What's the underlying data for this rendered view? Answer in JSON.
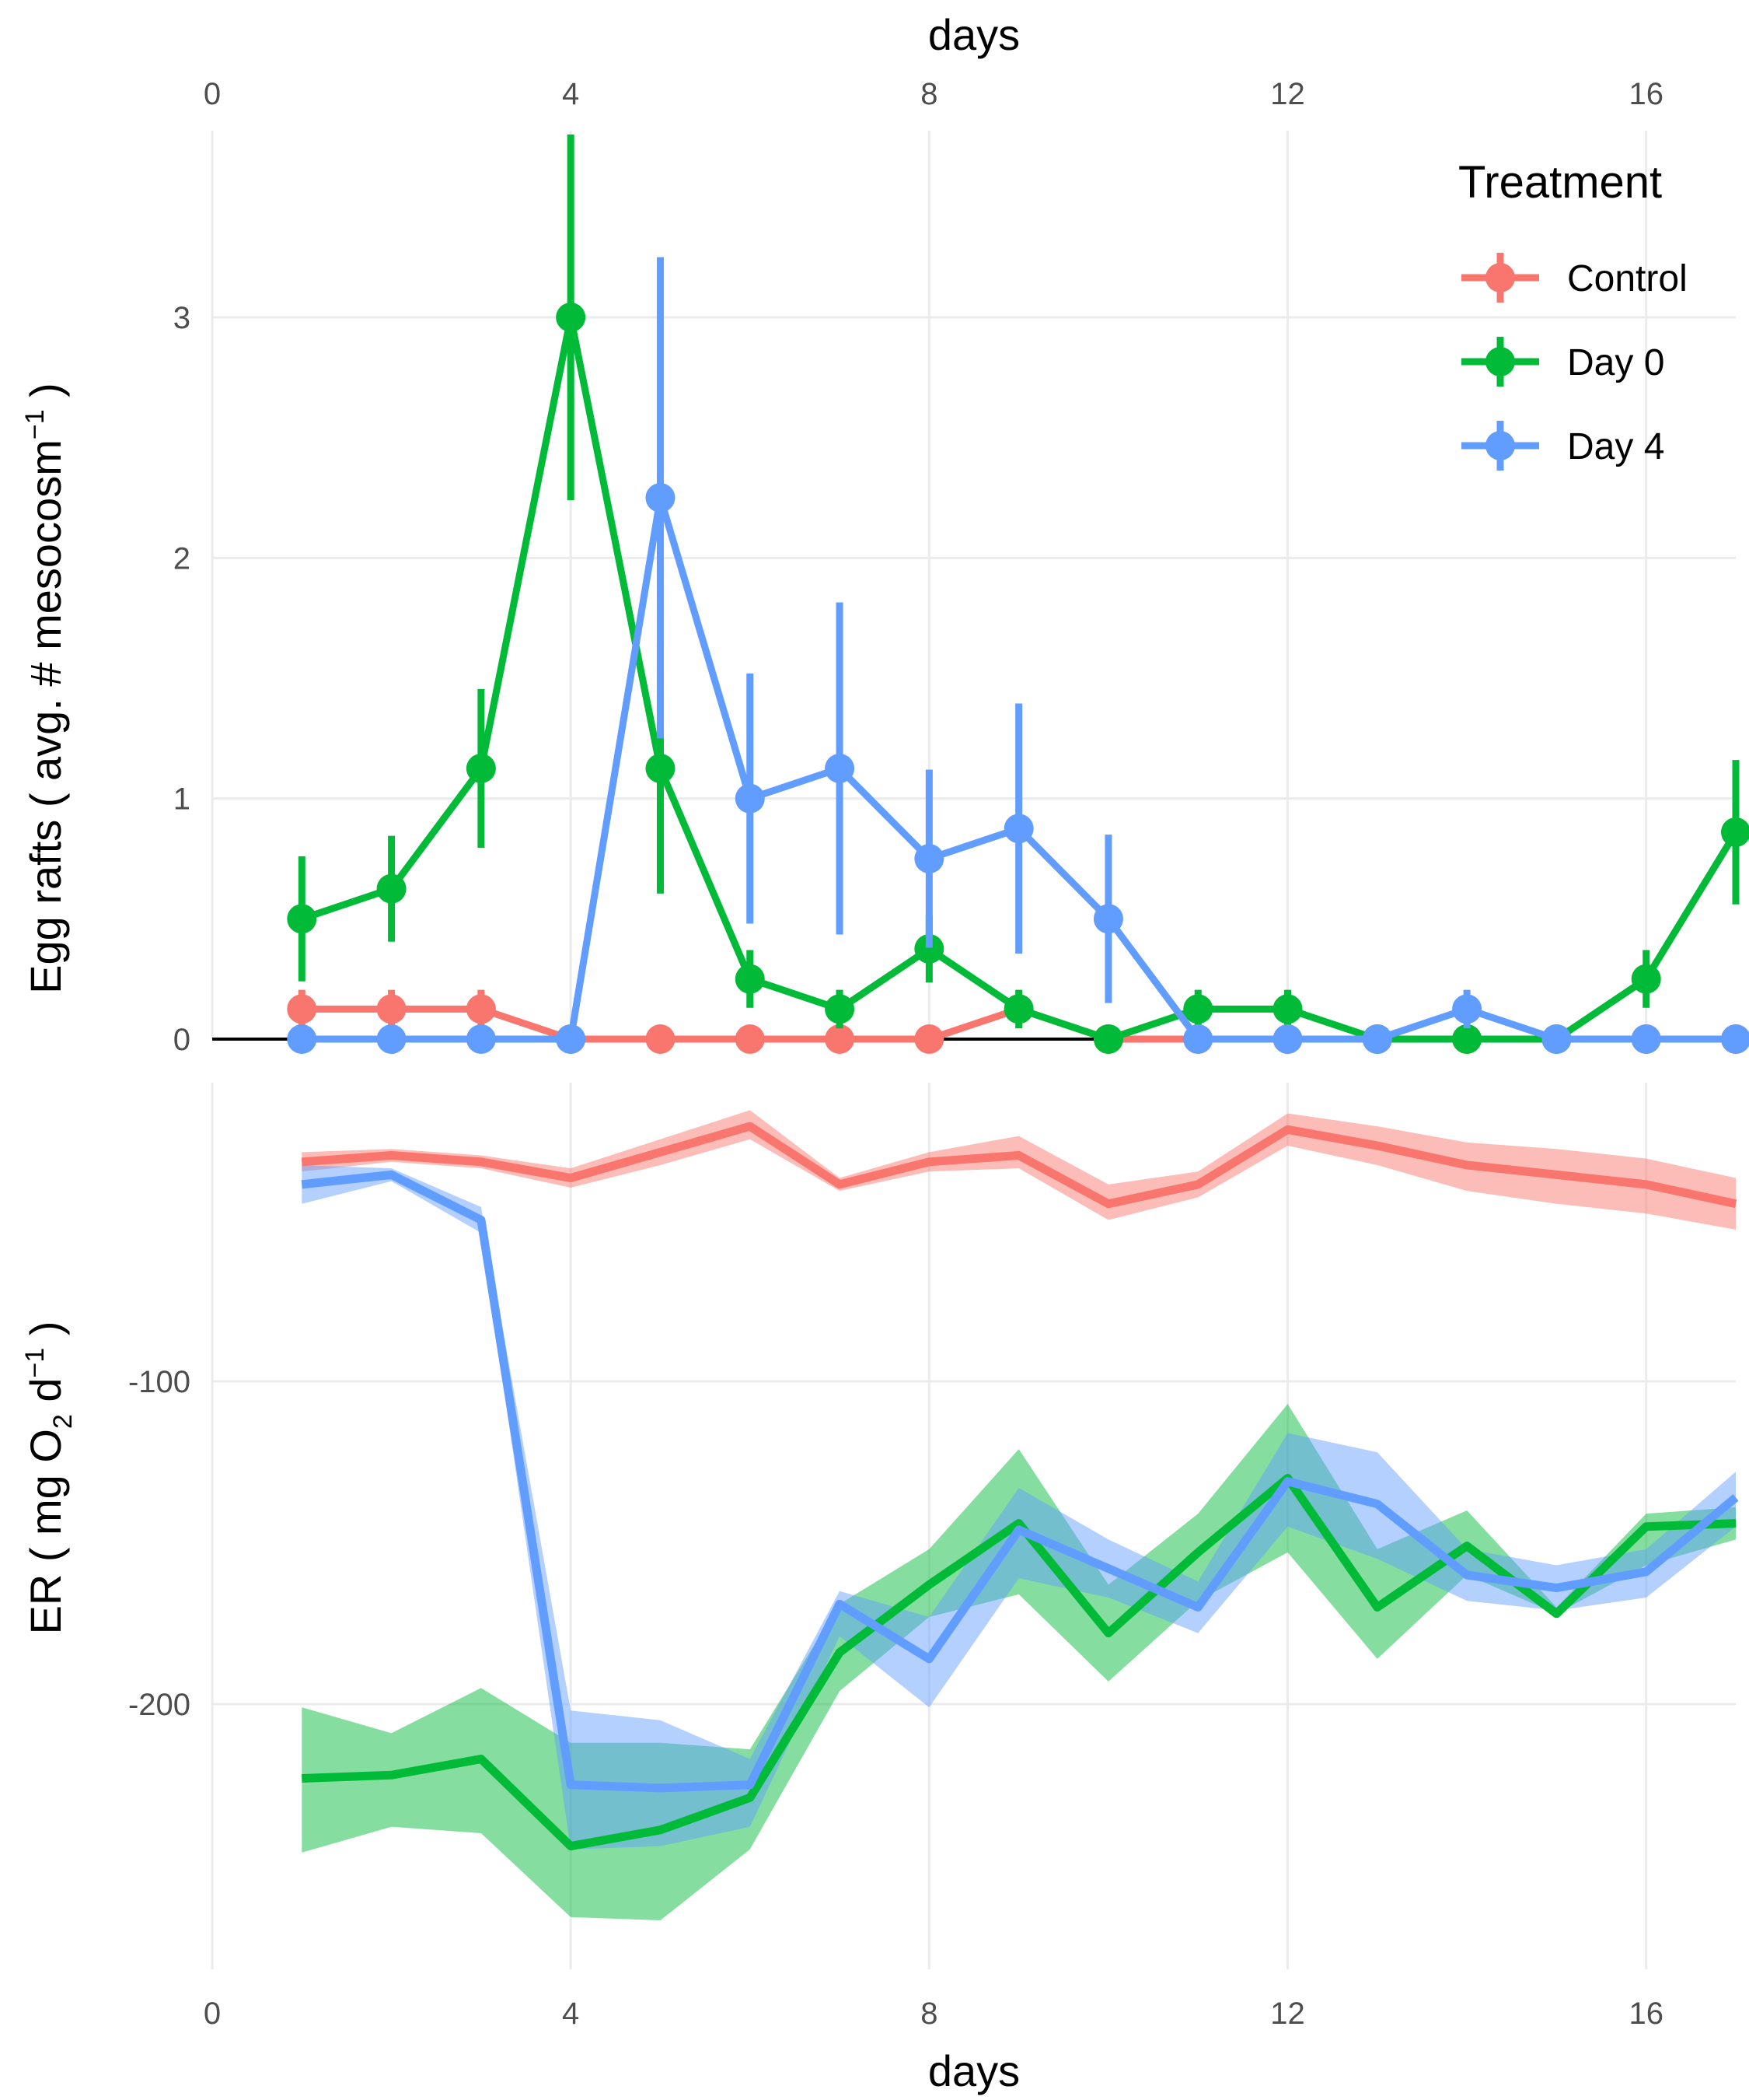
{
  "chart_data": [
    {
      "type": "line",
      "name": "egg-rafts",
      "xlabel": "days",
      "ylabel": "Egg rafts ( avg. # mesocosm",
      "ylabel_sup": "−1",
      "ylabel_end": " )",
      "xlim": [
        0,
        17
      ],
      "ylim": [
        0,
        3.75
      ],
      "x_ticks": [
        0,
        4,
        8,
        12,
        16
      ],
      "x_tick_labels": [
        "0",
        "4",
        "8",
        "12",
        "16"
      ],
      "y_ticks": [
        0,
        1,
        2,
        3
      ],
      "y_tick_labels": [
        "0",
        "1",
        "2",
        "3"
      ],
      "grid": true,
      "legend": {
        "title": "Treatment",
        "position": "top-right"
      },
      "x": [
        1,
        2,
        3,
        4,
        5,
        6,
        7,
        8,
        9,
        10,
        11,
        12,
        13,
        14,
        15,
        16,
        17
      ],
      "series": [
        {
          "name": "Control",
          "color": "#F8766D",
          "values": [
            0.125,
            0.125,
            0.125,
            0,
            0,
            0,
            0,
            0,
            0.125,
            0,
            0,
            0,
            0,
            0,
            0,
            0,
            0
          ],
          "err": [
            0.08,
            0.08,
            0.08,
            0,
            0,
            0,
            0,
            0,
            0,
            0,
            0,
            0,
            0,
            0,
            0,
            0,
            0
          ]
        },
        {
          "name": "Day 0",
          "color": "#00BA38",
          "values": [
            0.5,
            0.625,
            1.125,
            3.0,
            1.125,
            0.25,
            0.125,
            0.375,
            0.125,
            0,
            0.125,
            0.125,
            0,
            0,
            0,
            0.25,
            0.86
          ],
          "err": [
            0.26,
            0.22,
            0.33,
            0.76,
            0.52,
            0.12,
            0.08,
            0.14,
            0.08,
            0,
            0.08,
            0.08,
            0,
            0,
            0,
            0.12,
            0.3
          ]
        },
        {
          "name": "Day 4",
          "color": "#619CFF",
          "values": [
            0,
            0,
            0,
            0,
            2.25,
            1.0,
            1.125,
            0.75,
            0.875,
            0.5,
            0,
            0,
            0,
            0.125,
            0,
            0,
            0
          ],
          "err": [
            0,
            0,
            0,
            0,
            1.0,
            0.52,
            0.69,
            0.37,
            0.52,
            0.35,
            0,
            0,
            0,
            0.08,
            0,
            0,
            0
          ]
        }
      ]
    },
    {
      "type": "area",
      "name": "ecosystem-respiration",
      "xlabel": "days",
      "ylabel": "ER ( mg  O",
      "ylabel_sub": "2",
      "ylabel_mid": " d",
      "ylabel_sup": "−1",
      "ylabel_end": " )",
      "xlim": [
        0,
        17
      ],
      "ylim": [
        -276,
        -10
      ],
      "x_ticks": [
        0,
        4,
        8,
        12,
        16
      ],
      "x_tick_labels": [
        "0",
        "4",
        "8",
        "12",
        "16"
      ],
      "y_ticks": [
        -100,
        -200
      ],
      "y_tick_labels": [
        "-100",
        "-200"
      ],
      "grid": true,
      "x": [
        1,
        2,
        3,
        4,
        5,
        6,
        7,
        8,
        9,
        10,
        11,
        12,
        13,
        14,
        15,
        16,
        17
      ],
      "series": [
        {
          "name": "Control",
          "color": "#F8766D",
          "values": [
            -32,
            -30,
            -32,
            -37,
            -29,
            -21,
            -39,
            -32,
            -30,
            -45,
            -39,
            -22,
            -27,
            -33,
            -36,
            -39,
            -45
          ],
          "lower": [
            -35,
            -32,
            -34,
            -40,
            -33,
            -25,
            -41,
            -35,
            -34,
            -50,
            -43,
            -27,
            -33,
            -41,
            -45,
            -48,
            -53
          ],
          "upper": [
            -29,
            -28,
            -30,
            -34,
            -25,
            -16,
            -37,
            -29,
            -24,
            -39,
            -35,
            -17,
            -21,
            -26,
            -28,
            -31,
            -37
          ]
        },
        {
          "name": "Day 0",
          "color": "#00BA38",
          "values": [
            -223,
            -222,
            -217,
            -244,
            -239,
            -229,
            -184,
            -163,
            -144,
            -178,
            -153,
            -130,
            -170,
            -151,
            -172,
            -145,
            -144
          ],
          "lower": [
            -246,
            -238,
            -240,
            -266,
            -267,
            -245,
            -196,
            -173,
            -166,
            -193,
            -168,
            -153,
            -186,
            -160,
            -172,
            -157,
            -149
          ],
          "upper": [
            -201,
            -209,
            -195,
            -212,
            -212,
            -214,
            -169,
            -152,
            -121,
            -163,
            -141,
            -107,
            -152,
            -140,
            -170,
            -141,
            -139
          ]
        },
        {
          "name": "Day 4",
          "color": "#619CFF",
          "values": [
            -39,
            -36,
            -50,
            -225,
            -226,
            -225,
            -169,
            -186,
            -146,
            -158,
            -170,
            -131,
            -138,
            -160,
            -164,
            -159,
            -136
          ],
          "lower": [
            -45,
            -38,
            -54,
            -245,
            -244,
            -238,
            -179,
            -201,
            -161,
            -167,
            -178,
            -145,
            -155,
            -168,
            -171,
            -167,
            -145
          ],
          "upper": [
            -33,
            -34,
            -46,
            -202,
            -205,
            -217,
            -165,
            -173,
            -133,
            -149,
            -162,
            -116,
            -122,
            -152,
            -157,
            -152,
            -128
          ]
        }
      ]
    }
  ]
}
